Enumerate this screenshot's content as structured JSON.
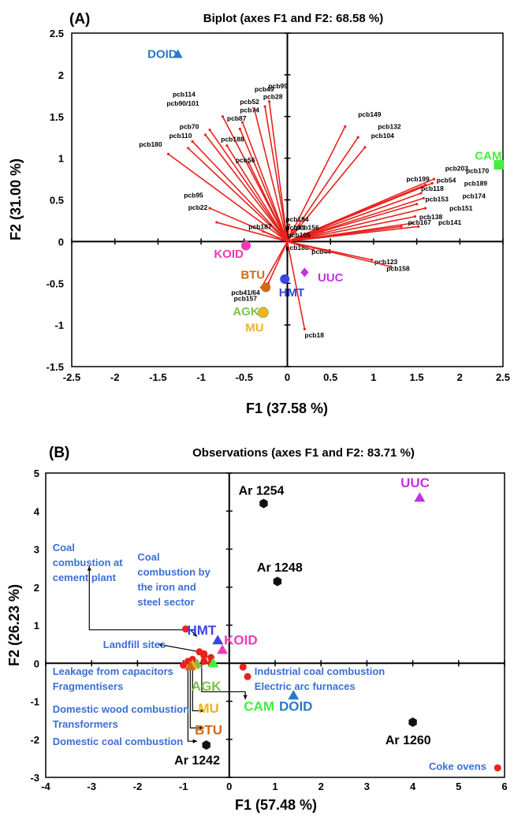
{
  "chart_data": [
    {
      "type": "scatter",
      "panel_label": "(A)",
      "title": "Biplot (axes F1 and F2: 68.58 %)",
      "xlabel": "F1 (37.58 %)",
      "ylabel": "F2 (31.00 %)",
      "xlim": [
        -2.5,
        2.5
      ],
      "ylim": [
        -1.5,
        2.5
      ],
      "xticks": [
        "-2.5",
        "-2",
        "-1.5",
        "-1",
        "-0.5",
        "0",
        "0.5",
        "1",
        "1.5",
        "2",
        "2.5"
      ],
      "yticks": [
        "-1.5",
        "-1",
        "-0.5",
        "0",
        "0.5",
        "1",
        "1.5",
        "2",
        "2.5"
      ],
      "vector_color": "#e8221c",
      "vectors": [
        {
          "label": "pcb114",
          "x": -0.9,
          "y": 1.34,
          "lx": -1.33,
          "ly": 1.74
        },
        {
          "label": "pcb90/101",
          "x": -0.95,
          "y": 1.28,
          "lx": -1.4,
          "ly": 1.63
        },
        {
          "label": "pcb49",
          "x": -0.38,
          "y": 1.58,
          "lx": -0.38,
          "ly": 1.8
        },
        {
          "label": "pcb99",
          "x": -0.21,
          "y": 1.68,
          "lx": -0.22,
          "ly": 1.84
        },
        {
          "label": "pcb28",
          "x": -0.26,
          "y": 1.62,
          "lx": -0.28,
          "ly": 1.71
        },
        {
          "label": "pcb52",
          "x": -0.52,
          "y": 1.43,
          "lx": -0.55,
          "ly": 1.65
        },
        {
          "label": "pcb74",
          "x": -0.55,
          "y": 1.35,
          "lx": -0.55,
          "ly": 1.55
        },
        {
          "label": "pcb87",
          "x": -0.75,
          "y": 1.5,
          "lx": -0.7,
          "ly": 1.45
        },
        {
          "label": "pcb70",
          "x": -1.1,
          "y": 1.2,
          "lx": -1.25,
          "ly": 1.35
        },
        {
          "label": "pcb110",
          "x": -1.15,
          "y": 1.12,
          "lx": -1.37,
          "ly": 1.24
        },
        {
          "label": "pcb188",
          "x": -0.7,
          "y": 1.15,
          "lx": -0.77,
          "ly": 1.2
        },
        {
          "label": "pcb180",
          "x": -1.38,
          "y": 1.05,
          "lx": -1.72,
          "ly": 1.14
        },
        {
          "label": "pcb56",
          "x": -0.45,
          "y": 0.95,
          "lx": -0.6,
          "ly": 0.95
        },
        {
          "label": "pcb95",
          "x": -0.9,
          "y": 0.4,
          "lx": -1.2,
          "ly": 0.53
        },
        {
          "label": "pcb22",
          "x": -0.82,
          "y": 0.23,
          "lx": -1.15,
          "ly": 0.38
        },
        {
          "label": "pcb187",
          "x": -0.28,
          "y": 0.12,
          "lx": -0.45,
          "ly": 0.15
        },
        {
          "label": "pcb149",
          "x": 0.67,
          "y": 1.38,
          "lx": 0.82,
          "ly": 1.5
        },
        {
          "label": "pcb132",
          "x": 0.82,
          "y": 1.25,
          "lx": 1.05,
          "ly": 1.35
        },
        {
          "label": "pcb104",
          "x": 0.9,
          "y": 1.13,
          "lx": 0.97,
          "ly": 1.24
        },
        {
          "label": "pcb203",
          "x": 1.7,
          "y": 0.75,
          "lx": 1.83,
          "ly": 0.85
        },
        {
          "label": "pcb170",
          "x": 1.68,
          "y": 0.7,
          "lx": 2.07,
          "ly": 0.82
        },
        {
          "label": "pcb54",
          "x": 1.6,
          "y": 0.68,
          "lx": 1.73,
          "ly": 0.71
        },
        {
          "label": "pcb199",
          "x": 1.55,
          "y": 0.65,
          "lx": 1.38,
          "ly": 0.72
        },
        {
          "label": "pcb189",
          "x": 1.55,
          "y": 0.58,
          "lx": 2.05,
          "ly": 0.67
        },
        {
          "label": "pcb118",
          "x": 1.58,
          "y": 0.52,
          "lx": 1.55,
          "ly": 0.61
        },
        {
          "label": "pcb153",
          "x": 1.5,
          "y": 0.45,
          "lx": 1.6,
          "ly": 0.48
        },
        {
          "label": "pcb174",
          "x": 1.6,
          "y": 0.4,
          "lx": 2.03,
          "ly": 0.52
        },
        {
          "label": "pcb151",
          "x": 1.48,
          "y": 0.3,
          "lx": 1.88,
          "ly": 0.37
        },
        {
          "label": "pcb138",
          "x": 1.45,
          "y": 0.22,
          "lx": 1.53,
          "ly": 0.27
        },
        {
          "label": "pcb167",
          "x": 1.32,
          "y": 0.18,
          "lx": 1.4,
          "ly": 0.2
        },
        {
          "label": "pcb141",
          "x": 1.52,
          "y": 0.18,
          "lx": 1.75,
          "ly": 0.2
        },
        {
          "label": "pcb194",
          "x": 0.02,
          "y": 0.2,
          "lx": -0.02,
          "ly": 0.24
        },
        {
          "label": "pcb31",
          "x": 0.05,
          "y": 0.13,
          "lx": -0.02,
          "ly": 0.14
        },
        {
          "label": "pcb156",
          "x": 0.4,
          "y": 0.12,
          "lx": 0.1,
          "ly": 0.14
        },
        {
          "label": "pcb105",
          "x": 0.55,
          "y": 0.08,
          "lx": 0.0,
          "ly": 0.05
        },
        {
          "label": "pcb183",
          "x": 0.0,
          "y": -0.05,
          "lx": -0.02,
          "ly": -0.1
        },
        {
          "label": "pcb44",
          "x": 0.3,
          "y": -0.1,
          "lx": 0.28,
          "ly": -0.15
        },
        {
          "label": "pcb123",
          "x": 0.98,
          "y": -0.22,
          "lx": 1.01,
          "ly": -0.27
        },
        {
          "label": "pcb158",
          "x": 1.2,
          "y": -0.3,
          "lx": 1.15,
          "ly": -0.35
        },
        {
          "label": "pcb41/64",
          "x": -0.22,
          "y": -0.5,
          "lx": -0.65,
          "ly": -0.64
        },
        {
          "label": "pcb157",
          "x": -0.3,
          "y": -0.55,
          "lx": -0.62,
          "ly": -0.71
        },
        {
          "label": "pcb18",
          "x": 0.2,
          "y": -1.05,
          "lx": 0.2,
          "ly": -1.15
        }
      ],
      "observations": [
        {
          "label": "DOID",
          "x": -1.27,
          "y": 2.25,
          "color": "#2a79c6",
          "shape": "triangle",
          "lx": -1.45,
          "ly": 2.25
        },
        {
          "label": "CAM",
          "x": 2.45,
          "y": 0.92,
          "color": "#42ee3e",
          "shape": "square",
          "lx": 2.33,
          "ly": 1.03
        },
        {
          "label": "KOID",
          "x": -0.48,
          "y": -0.05,
          "color": "#ee3bb2",
          "shape": "circle",
          "lx": -0.68,
          "ly": -0.15
        },
        {
          "label": "BTU",
          "x": -0.25,
          "y": -0.55,
          "color": "#cd6b17",
          "shape": "circle",
          "lx": -0.4,
          "ly": -0.4
        },
        {
          "label": "UUC",
          "x": 0.2,
          "y": -0.37,
          "color": "#c530e6",
          "shape": "diamond",
          "lx": 0.5,
          "ly": -0.43
        },
        {
          "label": "HMT",
          "x": -0.03,
          "y": -0.45,
          "color": "#3a46e4",
          "shape": "circle",
          "lx": 0.05,
          "ly": -0.61
        },
        {
          "label": "AGK",
          "x": -0.28,
          "y": -0.85,
          "color": "#7ec14a",
          "shape": "circle",
          "lx": -0.48,
          "ly": -0.84
        },
        {
          "label": "MU",
          "x": -0.28,
          "y": -0.85,
          "color": "#f2b21b",
          "shape": "circle",
          "lx": -0.38,
          "ly": -1.03
        }
      ]
    },
    {
      "type": "scatter",
      "panel_label": "(B)",
      "title": "Observations (axes F1 and F2: 83.71 %)",
      "xlabel": "F1 (57.48 %)",
      "ylabel": "F2 (26.23 %)",
      "xlim": [
        -4,
        6
      ],
      "ylim": [
        -3,
        5
      ],
      "xticks": [
        "-4",
        "-3",
        "-2",
        "-1",
        "0",
        "1",
        "2",
        "3",
        "4",
        "5",
        "6"
      ],
      "yticks": [
        "-3",
        "-2",
        "-1",
        "0",
        "1",
        "2",
        "3",
        "4",
        "5"
      ],
      "aroclors": [
        {
          "label": "Ar 1254",
          "x": 0.75,
          "y": 4.2,
          "lx": 0.7,
          "ly": 4.55
        },
        {
          "label": "Ar 1248",
          "x": 1.05,
          "y": 2.15,
          "lx": 1.1,
          "ly": 2.53
        },
        {
          "label": "Ar 1260",
          "x": 4.0,
          "y": -1.55,
          "lx": 3.9,
          "ly": -2.0
        },
        {
          "label": "Ar 1242",
          "x": -0.5,
          "y": -2.15,
          "lx": -0.7,
          "ly": -2.53
        }
      ],
      "source_points": [
        {
          "x": -0.95,
          "y": 0.9
        },
        {
          "x": -0.65,
          "y": 0.3
        },
        {
          "x": -0.55,
          "y": 0.25
        },
        {
          "x": -0.55,
          "y": 0.2
        },
        {
          "x": -0.4,
          "y": 0.15
        },
        {
          "x": -0.9,
          "y": 0.05
        },
        {
          "x": -0.8,
          "y": 0.1
        },
        {
          "x": -0.55,
          "y": 0.05
        },
        {
          "x": -1.0,
          "y": -0.05
        },
        {
          "x": -0.7,
          "y": -0.05
        },
        {
          "x": -0.4,
          "y": 0.0
        },
        {
          "x": 0.3,
          "y": -0.1
        },
        {
          "x": 0.4,
          "y": -0.35
        },
        {
          "x": 5.85,
          "y": -2.75
        }
      ],
      "source_point_color": "#e8221c",
      "observations": [
        {
          "label": "UUC",
          "x": 4.15,
          "y": 4.35,
          "color": "#c530e6",
          "lx": 4.05,
          "ly": 4.75
        },
        {
          "label": "HMT",
          "x": -0.25,
          "y": 0.6,
          "color": "#3a46e4",
          "lx": -0.6,
          "ly": 0.88
        },
        {
          "label": "KOID",
          "x": -0.15,
          "y": 0.35,
          "color": "#ee3bb2",
          "lx": 0.25,
          "ly": 0.62
        },
        {
          "label": "CAM",
          "x": -0.35,
          "y": 0.0,
          "color": "#42ee3e",
          "lx": 0.65,
          "ly": -1.12
        },
        {
          "label": "DOID",
          "x": 1.4,
          "y": -0.85,
          "color": "#2a79c6",
          "lx": 1.45,
          "ly": -1.12
        },
        {
          "label": "AGK",
          "x": -0.7,
          "y": -0.02,
          "color": "#7ec14a",
          "lx": -0.5,
          "ly": -0.6
        },
        {
          "label": "MU",
          "x": -0.8,
          "y": -0.05,
          "color": "#f2b21b",
          "lx": -0.45,
          "ly": -1.18
        },
        {
          "label": "BTU",
          "x": -0.85,
          "y": -0.08,
          "color": "#cd6b17",
          "lx": -0.45,
          "ly": -1.75
        }
      ],
      "source_labels": [
        {
          "lines": [
            "Coal",
            "combustion at",
            "cement plant"
          ],
          "x": -3.85,
          "y": 3.05
        },
        {
          "lines": [
            "Coal",
            "combustion by",
            "the iron and",
            "steel sector"
          ],
          "x": -2.0,
          "y": 2.8
        },
        {
          "lines": [
            "Landfill sites"
          ],
          "x": -2.75,
          "y": 0.5
        },
        {
          "lines": [
            "Leakage from capacitors",
            "Fragmentisers"
          ],
          "x": -3.85,
          "y": -0.2
        },
        {
          "lines": [
            "Industrial coal combustion",
            "Electric arc furnaces"
          ],
          "x": 0.55,
          "y": -0.2
        },
        {
          "lines": [
            "Domestic wood combustion",
            "Transformers"
          ],
          "x": -3.85,
          "y": -1.2
        },
        {
          "lines": [
            "Domestic coal combustion"
          ],
          "x": -3.85,
          "y": -2.05
        },
        {
          "lines": [
            "Coke ovens"
          ],
          "x": 4.35,
          "y": -2.7
        }
      ],
      "label_color": "#3b6fd6"
    }
  ]
}
